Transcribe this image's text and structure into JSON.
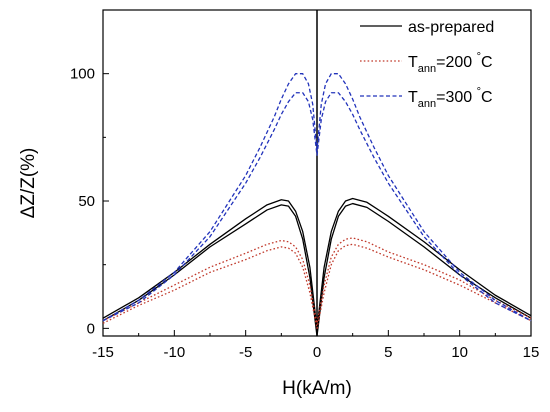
{
  "chart_data": {
    "type": "line",
    "title": "",
    "xlabel": "H(kA/m)",
    "ylabel": "ΔZ/Z(%)",
    "xlim": [
      -15,
      15
    ],
    "ylim": [
      -3,
      125
    ],
    "xticks": [
      -15,
      -10,
      -5,
      0,
      5,
      10,
      15
    ],
    "yticks": [
      0,
      50,
      100
    ],
    "grid": false,
    "legend_position": "top-right",
    "series": [
      {
        "name": "as-prepared",
        "legend_parts": {
          "main": "as-prepared",
          "sub": "",
          "sup": "",
          "tail": ""
        },
        "color": "#000000",
        "dash": "solid",
        "branches": [
          {
            "x": [
              -15,
              -12.5,
              -10,
              -7.5,
              -5,
              -3.5,
              -2.5,
              -2,
              -1.5,
              -1,
              -0.5,
              0,
              0.5,
              1,
              1.5,
              2,
              2.5,
              3.5,
              5,
              7.5,
              10,
              12.5,
              15
            ],
            "y": [
              4,
              12,
              22,
              33,
              43,
              48.5,
              50.5,
              50,
              46,
              38,
              24,
              0,
              24,
              38,
              46,
              50,
              51,
              49.5,
              44,
              34,
              23,
              13,
              5
            ]
          },
          {
            "x": [
              -15,
              -12.5,
              -10,
              -7.5,
              -5,
              -3.5,
              -2.5,
              -2,
              -1.5,
              -1,
              -0.5,
              0,
              0.5,
              1,
              1.5,
              2,
              2.5,
              3.5,
              5,
              7.5,
              10,
              12.5,
              15
            ],
            "y": [
              3,
              11,
              21,
              32,
              41,
              46.5,
              48.5,
              48,
              44,
              35,
              20,
              -3,
              20,
              35,
              44,
              48,
              49,
              47.5,
              42,
              32,
              21,
              12,
              4
            ]
          }
        ]
      },
      {
        "name": "T_ann=200 °C",
        "legend_parts": {
          "main": "T",
          "sub": "ann",
          "sup": "",
          "tail": "=200 °C"
        },
        "color": "#c0392b",
        "dash": "dotted",
        "branches": [
          {
            "x": [
              -15,
              -12.5,
              -10,
              -7.5,
              -5,
              -3.5,
              -2.5,
              -2,
              -1.5,
              -1,
              -0.5,
              0,
              0.5,
              1,
              1.5,
              2,
              2.5,
              3.5,
              5,
              7.5,
              10,
              12.5,
              15
            ],
            "y": [
              3,
              10,
              17,
              24,
              29.5,
              33,
              34.5,
              34,
              32,
              27,
              17,
              2,
              17,
              28,
              33,
              35,
              35.5,
              34,
              30,
              25,
              19,
              11,
              4
            ]
          },
          {
            "x": [
              -15,
              -12.5,
              -10,
              -7.5,
              -5,
              -3.5,
              -2.5,
              -2,
              -1.5,
              -1,
              -0.5,
              0,
              0.5,
              1,
              1.5,
              2,
              2.5,
              3.5,
              5,
              7.5,
              10,
              12.5,
              15
            ],
            "y": [
              2,
              9,
              15,
              22,
              27,
              30.5,
              32,
              31.5,
              29.5,
              24,
              14,
              0,
              14,
              25,
              30.5,
              32.5,
              33,
              31.5,
              28,
              23,
              17,
              10,
              3
            ]
          }
        ]
      },
      {
        "name": "T_ann=300 °C",
        "legend_parts": {
          "main": "T",
          "sub": "ann",
          "sup": "",
          "tail": "=300 °C"
        },
        "color": "#2233bb",
        "dash": "dashed",
        "branches": [
          {
            "x": [
              -15,
              -12.5,
              -10,
              -7.5,
              -5,
              -4,
              -3,
              -2.5,
              -2,
              -1.5,
              -1,
              -0.6,
              -0.3,
              0,
              0.3,
              0.6,
              1,
              1.5,
              2,
              2.5,
              3,
              4,
              5,
              7.5,
              10,
              12.5,
              15
            ],
            "y": [
              3,
              11,
              22,
              38,
              60,
              71,
              83,
              90,
              96,
              100,
              100,
              96,
              88,
              70,
              88,
              96,
              100,
              100,
              96,
              90,
              83,
              71,
              60,
              38,
              22,
              11,
              3
            ]
          },
          {
            "x": [
              -15,
              -12.5,
              -10,
              -7.5,
              -5,
              -4,
              -3,
              -2.5,
              -2,
              -1.5,
              -1,
              -0.6,
              -0.3,
              0,
              0.3,
              0.6,
              1,
              1.5,
              2,
              2.5,
              3,
              4,
              5,
              7.5,
              10,
              12.5,
              15
            ],
            "y": [
              3,
              10,
              21,
              36,
              57,
              67,
              78,
              84,
              89,
              92.5,
              92.5,
              89,
              82,
              68,
              82,
              89,
              92.5,
              92.5,
              89,
              84,
              78,
              67,
              57,
              36,
              21,
              10,
              3
            ]
          }
        ]
      }
    ]
  }
}
